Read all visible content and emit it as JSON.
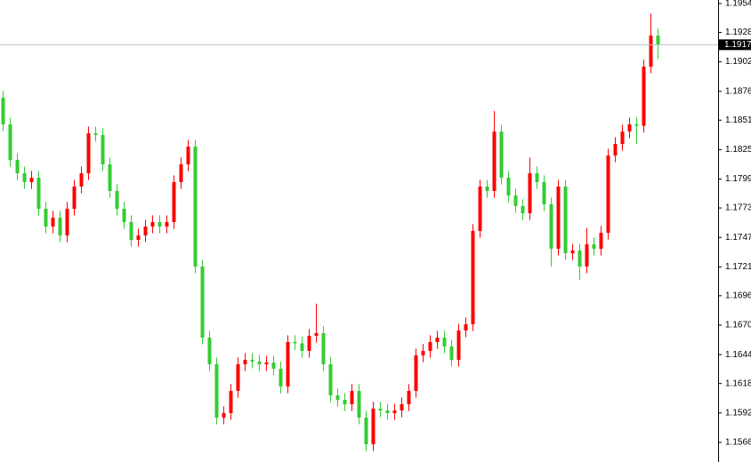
{
  "chart_data": {
    "type": "candlestick",
    "ylim": [
      1.15492,
      1.19571
    ],
    "yticks": [
      {
        "value": 1.1954,
        "label": "1.19540"
      },
      1.19285,
      1.19025,
      1.18765,
      {
        "value": 1.1851,
        "label": "1.18510"
      },
      {
        "value": 1.1825,
        "label": "1.18250"
      },
      {
        "value": 1.1799,
        "label": "1.17990"
      },
      1.17735,
      1.17475,
      1.17215,
      {
        "value": 1.1696,
        "label": "1.16960"
      },
      {
        "value": 1.167,
        "label": "1.16700"
      },
      {
        "value": 1.1644,
        "label": "1.16440"
      },
      1.16185,
      1.15925,
      1.15665
    ],
    "current_price": 1.19176,
    "up_color": "#ff0000",
    "down_color": "#32cd32",
    "open": [
      1.18708,
      1.18473,
      1.18159,
      1.18041,
      1.17963,
      1.18002,
      1.17728,
      1.17571,
      1.17649,
      1.17492,
      1.17728,
      1.17924,
      1.18041,
      1.18394,
      1.1838,
      1.1812,
      1.17885,
      1.17728,
      1.1761,
      1.17453,
      1.17492,
      1.17571,
      1.1761,
      1.17571,
      1.1761,
      1.17963,
      1.1812,
      1.18277,
      1.17218,
      1.1659,
      1.16355,
      1.15884,
      1.15924,
      1.1612,
      1.16355,
      1.16394,
      1.1638,
      1.16355,
      1.1637,
      1.16316,
      1.16159,
      1.16551,
      1.1654,
      1.16473,
      1.16606,
      1.1663,
      1.16355,
      1.1608,
      1.16041,
      1.16002,
      1.1612,
      1.15884,
      1.15649,
      1.15963,
      1.15947,
      1.15924,
      1.15947,
      1.16002,
      1.1612,
      1.16433,
      1.16473,
      1.16551,
      1.1659,
      1.16512,
      1.16394,
      1.16653,
      1.16708,
      1.17532,
      1.17924,
      1.17885,
      1.1841,
      1.18002,
      1.17845,
      1.17751,
      1.17688,
      1.18041,
      1.17963,
      1.17767,
      1.17375,
      1.17924,
      1.17335,
      1.17359,
      1.17218,
      1.17414,
      1.17375,
      1.17516,
      1.18198,
      1.183,
      1.1841,
      1.18473,
      1.1846,
      1.18983,
      1.19257
    ],
    "high": [
      1.18768,
      1.18533,
      1.18219,
      1.18101,
      1.18062,
      1.18062,
      1.17788,
      1.17709,
      1.17709,
      1.17788,
      1.17984,
      1.18101,
      1.18454,
      1.18454,
      1.1844,
      1.1818,
      1.17945,
      1.17788,
      1.1767,
      1.17552,
      1.17631,
      1.1767,
      1.1767,
      1.1767,
      1.18023,
      1.1818,
      1.18337,
      1.18337,
      1.17278,
      1.1665,
      1.16415,
      1.15984,
      1.1618,
      1.16415,
      1.16454,
      1.16454,
      1.1644,
      1.1643,
      1.1643,
      1.16376,
      1.16611,
      1.16611,
      1.166,
      1.16666,
      1.1689,
      1.1669,
      1.16415,
      1.1614,
      1.16101,
      1.1618,
      1.1618,
      1.15944,
      1.16023,
      1.16023,
      1.16007,
      1.16007,
      1.16062,
      1.1618,
      1.16493,
      1.16533,
      1.16611,
      1.1665,
      1.1665,
      1.16572,
      1.16713,
      1.16768,
      1.17592,
      1.17984,
      1.17984,
      1.1859,
      1.1847,
      1.18062,
      1.17905,
      1.17811,
      1.1818,
      1.18101,
      1.18023,
      1.17827,
      1.17984,
      1.17984,
      1.17419,
      1.17419,
      1.1756,
      1.17474,
      1.17576,
      1.18258,
      1.1836,
      1.1847,
      1.18533,
      1.18533,
      1.19043,
      1.1945,
      1.19317
    ],
    "low": [
      1.18413,
      1.18099,
      1.17981,
      1.17903,
      1.17903,
      1.17668,
      1.17511,
      1.17511,
      1.17432,
      1.17432,
      1.17668,
      1.17864,
      1.17981,
      1.1832,
      1.1806,
      1.17825,
      1.17668,
      1.1755,
      1.17393,
      1.17393,
      1.17432,
      1.17511,
      1.17511,
      1.17511,
      1.1755,
      1.17903,
      1.1806,
      1.17158,
      1.1653,
      1.16295,
      1.15824,
      1.15824,
      1.15864,
      1.1606,
      1.16295,
      1.1632,
      1.16295,
      1.16295,
      1.16256,
      1.16099,
      1.16099,
      1.1648,
      1.16413,
      1.16413,
      1.16546,
      1.16295,
      1.1602,
      1.15981,
      1.15942,
      1.15942,
      1.15824,
      1.15589,
      1.15589,
      1.15887,
      1.15864,
      1.15864,
      1.15887,
      1.15942,
      1.1606,
      1.16373,
      1.16413,
      1.16491,
      1.16452,
      1.16334,
      1.16334,
      1.16593,
      1.16648,
      1.17472,
      1.17825,
      1.17825,
      1.17942,
      1.17785,
      1.17691,
      1.17628,
      1.17628,
      1.17903,
      1.17707,
      1.17218,
      1.17315,
      1.17275,
      1.17275,
      1.171,
      1.17158,
      1.17315,
      1.17315,
      1.17456,
      1.18138,
      1.1824,
      1.1835,
      1.183,
      1.184,
      1.18923,
      1.1905
    ],
    "close": [
      1.18473,
      1.18159,
      1.18041,
      1.17963,
      1.18002,
      1.17728,
      1.17571,
      1.17649,
      1.17492,
      1.17728,
      1.17924,
      1.18041,
      1.18394,
      1.1838,
      1.1812,
      1.17885,
      1.17728,
      1.1761,
      1.17453,
      1.17492,
      1.17571,
      1.1761,
      1.17571,
      1.1761,
      1.17963,
      1.1812,
      1.18277,
      1.17218,
      1.1659,
      1.16355,
      1.15884,
      1.15924,
      1.1612,
      1.16355,
      1.16394,
      1.1638,
      1.16355,
      1.1637,
      1.16316,
      1.16159,
      1.16551,
      1.1654,
      1.16473,
      1.16606,
      1.1663,
      1.16355,
      1.1608,
      1.16041,
      1.16002,
      1.1612,
      1.15884,
      1.15649,
      1.15963,
      1.15947,
      1.15924,
      1.15947,
      1.16002,
      1.1612,
      1.16433,
      1.16473,
      1.16551,
      1.1659,
      1.16512,
      1.16394,
      1.16653,
      1.16708,
      1.17532,
      1.17924,
      1.17885,
      1.1841,
      1.18002,
      1.17845,
      1.17751,
      1.17688,
      1.18041,
      1.17963,
      1.17767,
      1.17375,
      1.17924,
      1.17335,
      1.17359,
      1.17218,
      1.17414,
      1.17375,
      1.17516,
      1.18198,
      1.183,
      1.1841,
      1.18473,
      1.1846,
      1.18983,
      1.19257,
      1.19176
    ]
  }
}
